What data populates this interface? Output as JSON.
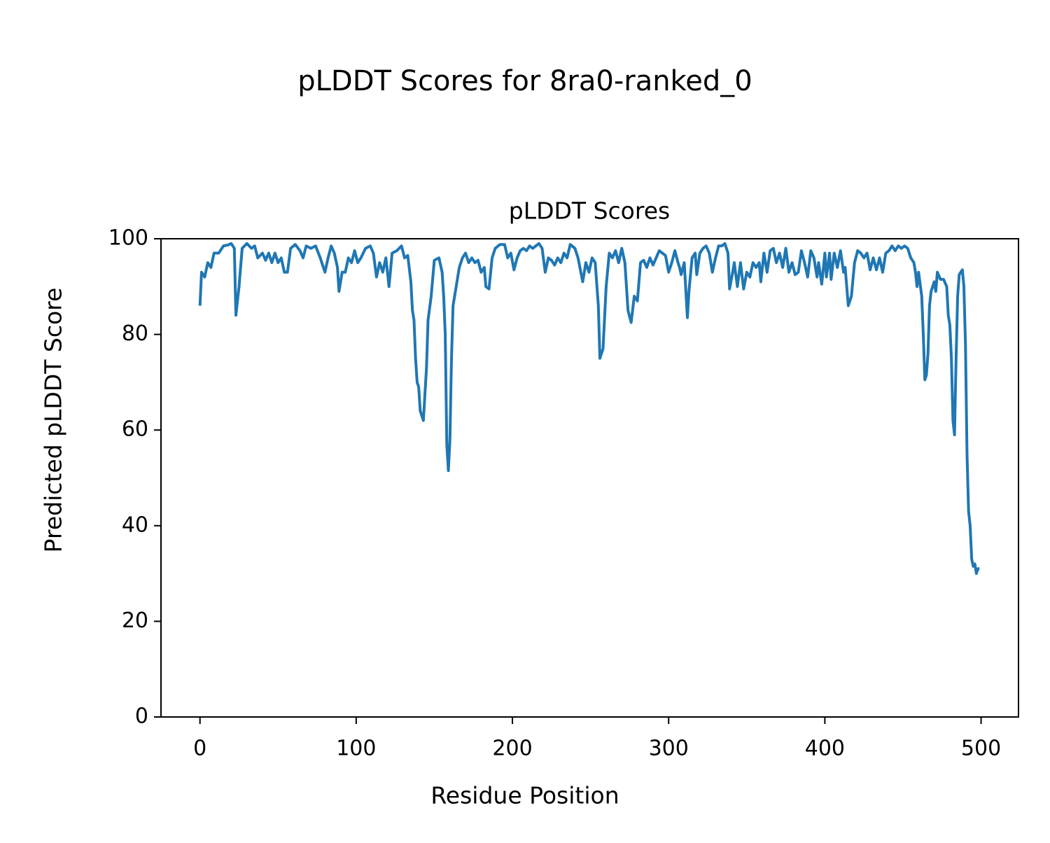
{
  "chart_data": {
    "type": "line",
    "title": "pLDDT Scores for 8ra0-ranked_0",
    "subtitle": "pLDDT Scores",
    "x_label": "Residue Position",
    "y_label": "Predicted pLDDT Score",
    "xlim": [
      -24.95,
      523.95
    ],
    "ylim": [
      0,
      100
    ],
    "xticks": [
      0,
      100,
      200,
      300,
      400,
      500
    ],
    "yticks": [
      0,
      20,
      40,
      60,
      80,
      100
    ],
    "grid": false,
    "series": [
      {
        "name": "pLDDT",
        "color": "#1f77b4",
        "x": [
          0,
          1,
          3,
          5,
          7,
          9,
          12,
          15,
          18,
          20,
          22,
          23,
          25,
          27,
          30,
          33,
          35,
          37,
          40,
          42,
          44,
          46,
          48,
          50,
          52,
          54,
          56,
          58,
          61,
          64,
          66,
          68,
          71,
          74,
          77,
          80,
          82,
          84,
          86,
          88,
          89,
          91,
          93,
          95,
          97,
          99,
          101,
          103,
          106,
          109,
          111,
          113,
          115,
          117,
          119,
          121,
          123,
          126,
          129,
          131,
          133,
          135,
          136,
          137,
          138,
          139,
          140,
          141,
          143,
          145,
          146,
          148,
          150,
          153,
          155,
          156,
          157,
          158,
          159,
          160,
          161,
          162,
          164,
          166,
          168,
          170,
          172,
          174,
          176,
          178,
          180,
          182,
          183,
          185,
          187,
          189,
          192,
          195,
          197,
          199,
          201,
          203,
          205,
          207,
          209,
          211,
          213,
          215,
          217,
          219,
          221,
          223,
          225,
          227,
          229,
          231,
          233,
          235,
          237,
          240,
          242,
          245,
          247,
          249,
          251,
          253,
          255,
          256,
          258,
          260,
          262,
          264,
          266,
          268,
          270,
          272,
          274,
          276,
          278,
          280,
          282,
          284,
          286,
          288,
          290,
          292,
          294,
          296,
          298,
          300,
          302,
          304,
          306,
          307,
          308,
          310,
          312,
          313,
          315,
          317,
          318,
          320,
          322,
          324,
          326,
          328,
          330,
          332,
          334,
          336,
          338,
          339,
          341,
          342,
          344,
          346,
          348,
          350,
          352,
          354,
          356,
          358,
          359,
          361,
          363,
          365,
          367,
          369,
          371,
          373,
          375,
          377,
          379,
          381,
          383,
          385,
          387,
          389,
          391,
          393,
          395,
          396,
          398,
          400,
          401,
          403,
          404,
          406,
          408,
          410,
          412,
          413,
          415,
          417,
          419,
          421,
          423,
          425,
          427,
          429,
          431,
          433,
          435,
          437,
          439,
          441,
          443,
          445,
          447,
          449,
          451,
          453,
          455,
          457,
          458,
          459,
          460,
          462,
          463,
          464,
          465,
          466,
          467,
          468,
          470,
          471,
          472,
          474,
          476,
          478,
          479,
          480,
          481,
          482,
          483,
          484,
          485,
          486,
          488,
          489,
          490,
          491,
          492,
          493,
          494,
          495,
          496,
          497,
          498,
          499
        ],
        "values": [
          86,
          93,
          92,
          95,
          94,
          97,
          97,
          98.5,
          98.7,
          99,
          98,
          84,
          90,
          98,
          99,
          98,
          98.5,
          96,
          97,
          95.5,
          97,
          95,
          97,
          95,
          96,
          93,
          93,
          98,
          98.8,
          97.5,
          96,
          98.5,
          98,
          98.5,
          96,
          93,
          96,
          98.5,
          97,
          94,
          89,
          93,
          93,
          96,
          95,
          97.5,
          95,
          96,
          98,
          98.5,
          97,
          92,
          95,
          93,
          96,
          90,
          97,
          97.5,
          98.5,
          96,
          96.5,
          91,
          85,
          83,
          75,
          70,
          69,
          64,
          62,
          73,
          83,
          88,
          95.5,
          96,
          93,
          88,
          80,
          57,
          51.5,
          58,
          75,
          86,
          90,
          94,
          96,
          97,
          95,
          96,
          95,
          95.5,
          93,
          94,
          90,
          89.5,
          96,
          98,
          98.8,
          98.8,
          96,
          97,
          93.5,
          96,
          97.5,
          98,
          97.5,
          98.5,
          98,
          98.5,
          99,
          98,
          93,
          96,
          95.5,
          94.5,
          96,
          95,
          97,
          96,
          98.8,
          98,
          96,
          91,
          95,
          93,
          96,
          95,
          86,
          75,
          77,
          90,
          97,
          96,
          97.5,
          95,
          98,
          95,
          85,
          82.5,
          88,
          87,
          95,
          95.5,
          94,
          96,
          94.5,
          96,
          97.5,
          97,
          96.5,
          93,
          95,
          97.5,
          95,
          94,
          92.5,
          95,
          83.5,
          89,
          96,
          97,
          92.5,
          97,
          98,
          98.5,
          97,
          93,
          96,
          98.5,
          98.5,
          99,
          97,
          89.5,
          93,
          95,
          90,
          95,
          89.5,
          93,
          92,
          95,
          94,
          95,
          91,
          97,
          93,
          97.5,
          98,
          95,
          97,
          94,
          98,
          93,
          95,
          92.5,
          93,
          97.5,
          95,
          92,
          97.5,
          96,
          92,
          95,
          90.5,
          97,
          92,
          97,
          91.5,
          97,
          94,
          97.5,
          93,
          94,
          86,
          88,
          95,
          97.5,
          97,
          96,
          97,
          93.5,
          96,
          93.5,
          96,
          93,
          97,
          97.5,
          98.5,
          97.5,
          98.5,
          98,
          98.5,
          98,
          96,
          95,
          93,
          90,
          93,
          88,
          80,
          70.5,
          71.5,
          76,
          86,
          89,
          91,
          89,
          93,
          91.5,
          91.5,
          90,
          84,
          82,
          75,
          62,
          59,
          75,
          88,
          92.5,
          93.5,
          90,
          78,
          55,
          43,
          40,
          33,
          31.5,
          32,
          30,
          31,
          31
        ]
      }
    ]
  }
}
